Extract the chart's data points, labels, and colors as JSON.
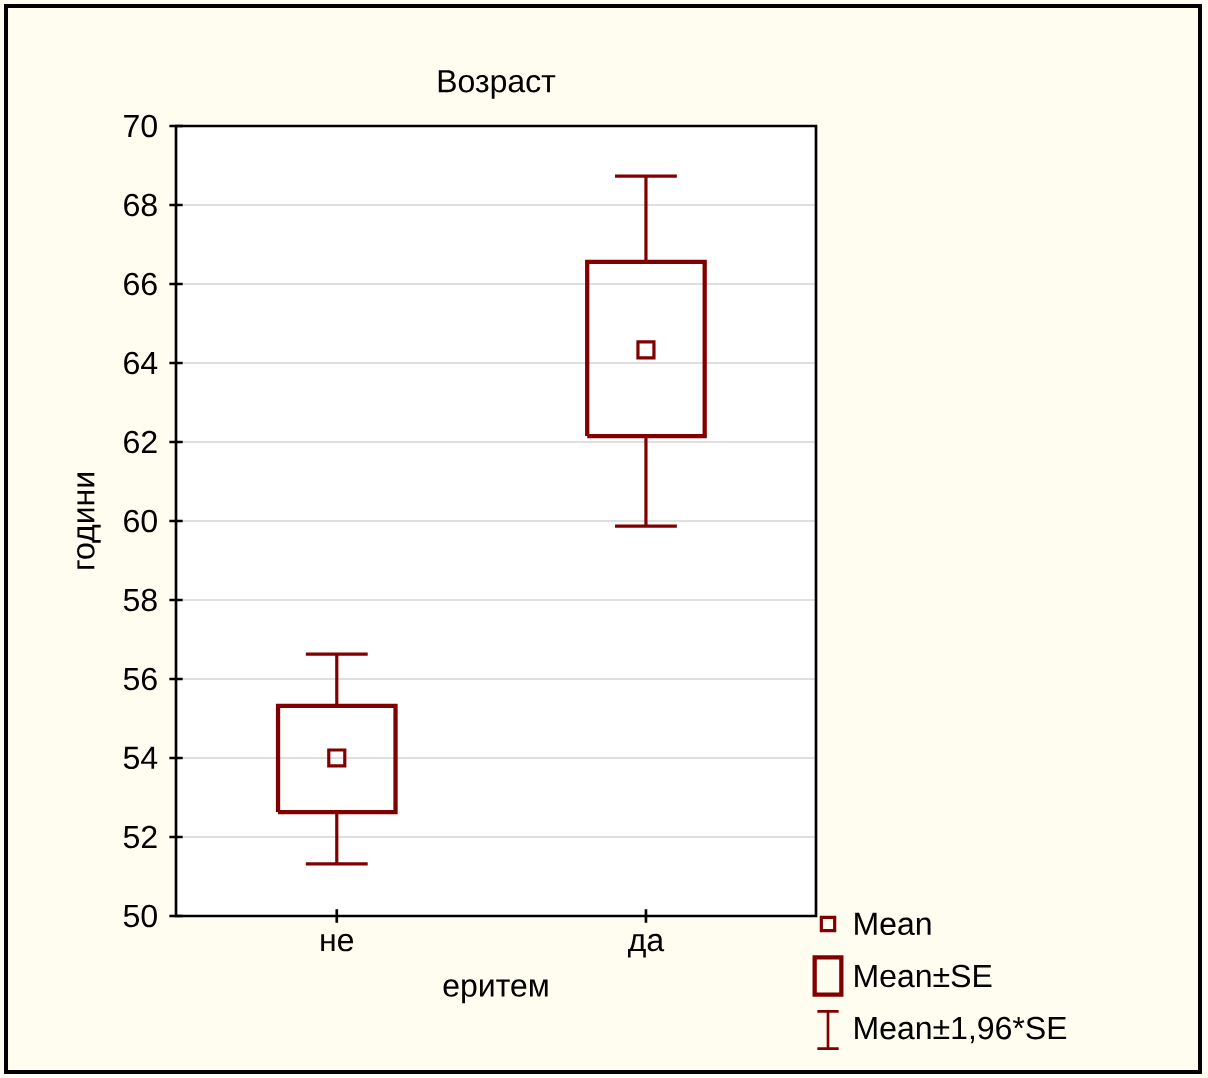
{
  "chart_data": {
    "type": "box",
    "title": "Возраст",
    "xlabel": "еритем",
    "ylabel": "години",
    "categories": [
      "не",
      "да"
    ],
    "series": [
      {
        "color": "#800000",
        "boxes": [
          {
            "low": 51.32,
            "q1": 52.63,
            "median": 54.0,
            "q3": 55.32,
            "high": 56.63
          },
          {
            "low": 59.87,
            "q1": 62.15,
            "median": 64.33,
            "q3": 66.56,
            "high": 68.73
          }
        ]
      }
    ],
    "ylim": [
      50,
      70
    ],
    "yticks": [
      50,
      52,
      54,
      56,
      58,
      60,
      62,
      64,
      66,
      68,
      70
    ],
    "grid": "y",
    "annotations": [
      "Mean",
      "Mean±SE",
      "Mean±1,96*SE"
    ]
  }
}
